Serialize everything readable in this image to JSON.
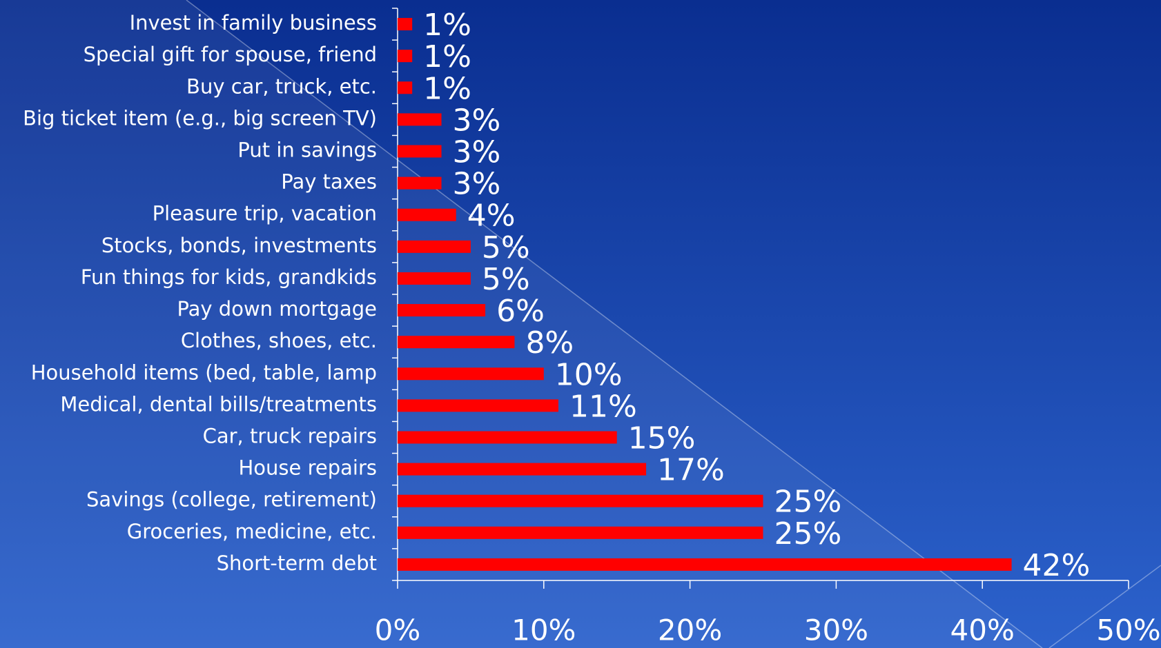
{
  "chart_data": {
    "type": "bar",
    "orientation": "horizontal",
    "color": "#ff0000",
    "categories": [
      "Invest in family business",
      "Special gift for spouse, friend",
      "Buy car, truck, etc.",
      "Big ticket item (e.g., big screen TV)",
      "Put in savings",
      "Pay taxes",
      "Pleasure trip, vacation",
      "Stocks, bonds, investments",
      "Fun things for kids, grandkids",
      "Pay down mortgage",
      "Clothes, shoes, etc.",
      "Household items (bed, table, lamp",
      "Medical, dental bills/treatments",
      "Car, truck repairs",
      "House repairs",
      "Savings (college, retirement)",
      "Groceries, medicine, etc.",
      "Short-term debt"
    ],
    "values": [
      1,
      1,
      1,
      3,
      3,
      3,
      4,
      5,
      5,
      6,
      8,
      10,
      11,
      15,
      17,
      25,
      25,
      42
    ],
    "value_labels": [
      "1%",
      "1%",
      "1%",
      "3%",
      "3%",
      "3%",
      "4%",
      "5%",
      "5%",
      "6%",
      "8%",
      "10%",
      "11%",
      "15%",
      "17%",
      "25%",
      "25%",
      "42%"
    ],
    "xlim": [
      0,
      50
    ],
    "xticks": [
      {
        "value": 0,
        "label": "0%"
      },
      {
        "value": 10,
        "label": "10%"
      },
      {
        "value": 20,
        "label": "20%"
      },
      {
        "value": 30,
        "label": "30%"
      },
      {
        "value": 40,
        "label": "40%"
      },
      {
        "value": 50,
        "label": "50%"
      }
    ]
  }
}
